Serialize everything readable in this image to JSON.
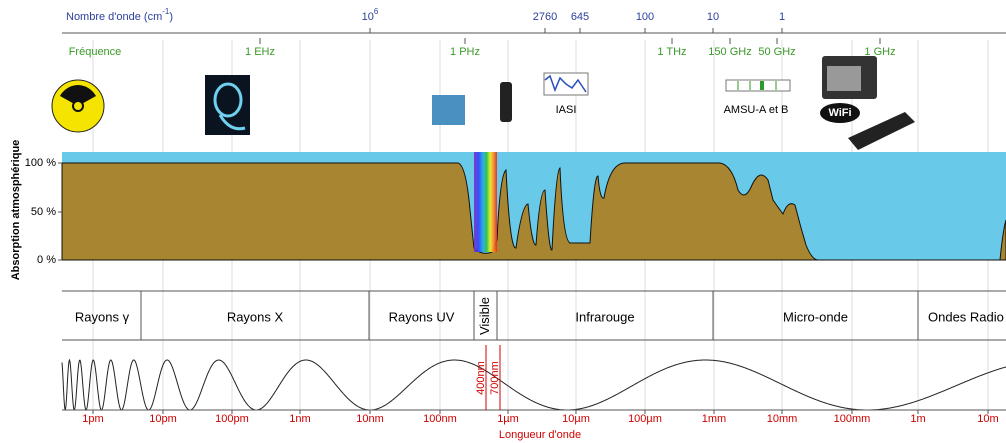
{
  "wavenumber_axis": {
    "title": "Nombre d'onde (cm",
    "title_exponent": "-1",
    "title_end": ")",
    "labels": [
      {
        "base": "10",
        "exponent": "6"
      },
      "2760",
      "645",
      "100",
      "10",
      "1"
    ]
  },
  "frequency_axis": {
    "title": "Fréquence",
    "labels": [
      "1 EHz",
      "1 PHz",
      "1 THz",
      "150 GHz",
      "50 GHz",
      "1 GHz"
    ]
  },
  "instruments": {
    "iasi": "IASI",
    "amsu": "AMSU-A et B",
    "wifi": "WiFi"
  },
  "absorption": {
    "axis_title": "Absorption atmosphérique",
    "ticks": [
      "100 %",
      "50 %",
      "0 %"
    ]
  },
  "bands": [
    "Rayons γ",
    "Rayons X",
    "Rayons UV",
    "Visible",
    "Infrarouge",
    "Micro-onde",
    "Ondes Radio"
  ],
  "visible_markers": [
    "400nm",
    "700nm"
  ],
  "wavelength_axis": {
    "title": "Longueur d'onde",
    "labels": [
      "1pm",
      "10pm",
      "100pm",
      "1nm",
      "10nm",
      "100nm",
      "1µm",
      "10µm",
      "100µm",
      "1mm",
      "10mm",
      "100mm",
      "1m",
      "10m"
    ]
  }
}
